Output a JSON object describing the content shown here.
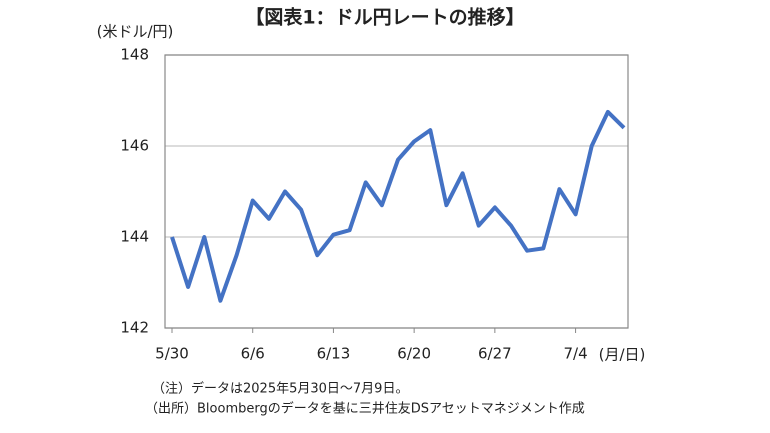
{
  "chart_data": {
    "type": "line",
    "title": "【図表1：ドル円レートの推移】",
    "y_label": "(米ドル/円)",
    "x_label": "(月/日)",
    "categories": [
      "5/30",
      null,
      null,
      null,
      null,
      "6/6",
      null,
      null,
      null,
      null,
      "6/13",
      null,
      null,
      null,
      null,
      "6/20",
      null,
      null,
      null,
      null,
      "6/27",
      null,
      null,
      null,
      null,
      "7/4",
      null,
      null,
      null
    ],
    "series": [
      {
        "color": "#4472c4",
        "values": [
          144.0,
          142.9,
          144.0,
          142.6,
          143.6,
          144.8,
          144.4,
          145.0,
          144.6,
          143.6,
          144.05,
          144.15,
          145.2,
          144.7,
          145.7,
          146.1,
          146.35,
          144.7,
          145.4,
          144.25,
          144.65,
          144.25,
          143.7,
          143.75,
          145.05,
          144.5,
          146.0,
          146.75,
          146.4
        ]
      }
    ],
    "ylim": [
      142,
      148
    ],
    "yticks": [
      142,
      144,
      146,
      148
    ],
    "grid": true,
    "notes": [
      "（注）データは2025年5月30日～7月9日。",
      "（出所）Bloombergのデータを基に三井住友DSアセットマネジメント作成"
    ]
  }
}
